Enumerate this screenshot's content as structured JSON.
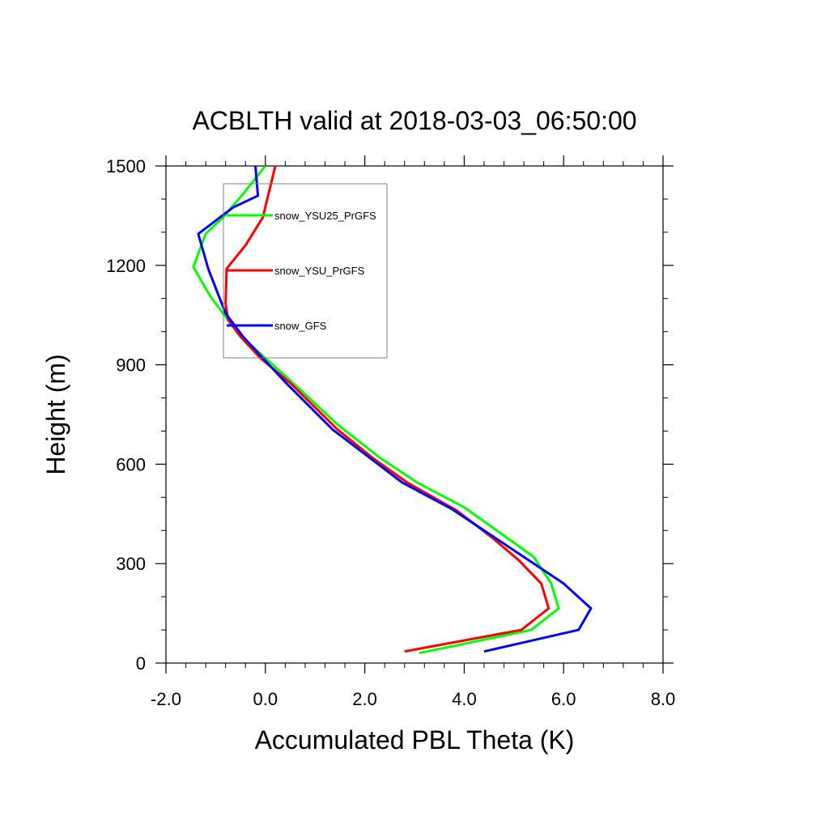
{
  "chart_data": {
    "type": "line",
    "title": "ACBLTH valid at 2018-03-03_06:50:00",
    "xlabel": "Accumulated PBL Theta (K)",
    "ylabel": "Height (m)",
    "xlim": [
      -2.0,
      8.0
    ],
    "ylim": [
      0,
      1500
    ],
    "xticks": [
      -2.0,
      0.0,
      2.0,
      4.0,
      6.0,
      8.0
    ],
    "xtick_labels": [
      "-2.0",
      "0.0",
      "2.0",
      "4.0",
      "6.0",
      "8.0"
    ],
    "yticks": [
      0,
      300,
      600,
      900,
      1200,
      1500
    ],
    "ytick_labels": [
      "0",
      "300",
      "600",
      "900",
      "1200",
      "1500"
    ],
    "grid": false,
    "legend_position": "top-left inside",
    "series": [
      {
        "name": "snow_YSU25_PrGFS",
        "color": "#00ff00",
        "points": [
          [
            3.1,
            30
          ],
          [
            5.35,
            100
          ],
          [
            5.9,
            165
          ],
          [
            5.75,
            240
          ],
          [
            5.4,
            320
          ],
          [
            4.75,
            390
          ],
          [
            4.0,
            470
          ],
          [
            3.05,
            545
          ],
          [
            2.3,
            620
          ],
          [
            1.45,
            720
          ],
          [
            0.45,
            860
          ],
          [
            -0.15,
            940
          ],
          [
            -0.55,
            995
          ],
          [
            -0.8,
            1045
          ],
          [
            -1.1,
            1105
          ],
          [
            -1.45,
            1195
          ],
          [
            -1.2,
            1295
          ],
          [
            -0.85,
            1345
          ],
          [
            -0.45,
            1415
          ],
          [
            0.0,
            1500
          ]
        ]
      },
      {
        "name": "snow_YSU_PrGFS",
        "color": "#ff0000",
        "points": [
          [
            2.8,
            35
          ],
          [
            5.15,
            100
          ],
          [
            5.7,
            165
          ],
          [
            5.55,
            240
          ],
          [
            5.1,
            310
          ],
          [
            4.55,
            380
          ],
          [
            3.85,
            460
          ],
          [
            2.85,
            545
          ],
          [
            2.15,
            620
          ],
          [
            1.45,
            705
          ],
          [
            0.5,
            845
          ],
          [
            -0.1,
            920
          ],
          [
            -0.5,
            985
          ],
          [
            -0.75,
            1035
          ],
          [
            -0.8,
            1085
          ],
          [
            -0.78,
            1190
          ],
          [
            -0.4,
            1260
          ],
          [
            -0.05,
            1345
          ],
          [
            0.2,
            1500
          ]
        ]
      },
      {
        "name": "snow_GFS",
        "color": "#0000ff",
        "points": [
          [
            4.4,
            35
          ],
          [
            6.3,
            100
          ],
          [
            6.55,
            165
          ],
          [
            6.0,
            240
          ],
          [
            5.2,
            320
          ],
          [
            4.5,
            390
          ],
          [
            3.75,
            465
          ],
          [
            2.75,
            545
          ],
          [
            2.05,
            625
          ],
          [
            1.35,
            705
          ],
          [
            0.45,
            840
          ],
          [
            -0.05,
            920
          ],
          [
            -0.45,
            985
          ],
          [
            -0.8,
            1055
          ],
          [
            -1.15,
            1190
          ],
          [
            -1.35,
            1295
          ],
          [
            -0.65,
            1375
          ],
          [
            -0.15,
            1410
          ],
          [
            -0.2,
            1500
          ]
        ]
      }
    ]
  }
}
